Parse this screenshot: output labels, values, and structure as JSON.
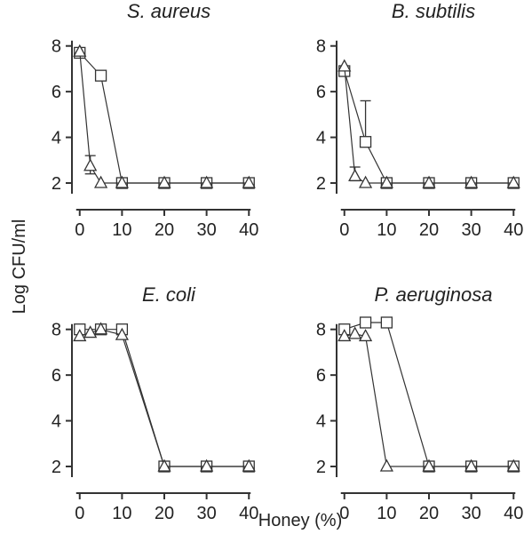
{
  "figure": {
    "ylabel": "Log CFU/ml",
    "xlabel": "Honey (%)"
  },
  "chart_data": [
    {
      "type": "line",
      "title": "S. aureus",
      "x_ticks": [
        0,
        10,
        20,
        30,
        40
      ],
      "y_ticks": [
        2,
        4,
        6,
        8
      ],
      "xlim": [
        -1,
        41
      ],
      "ylim": [
        1.3,
        9
      ],
      "series": [
        {
          "marker": "square",
          "x": [
            0,
            5,
            10,
            20,
            30,
            40
          ],
          "y": [
            7.7,
            6.7,
            2.0,
            2.0,
            2.0,
            2.0
          ]
        },
        {
          "marker": "triangle",
          "x": [
            0,
            2.5,
            5,
            10,
            20,
            30,
            40
          ],
          "y": [
            7.75,
            2.75,
            2.0,
            2.0,
            2.0,
            2.0,
            2.0
          ],
          "error_upper": [
            0,
            3.2,
            0,
            0,
            0,
            0,
            0
          ],
          "error_lower": [
            0,
            2.4,
            0,
            0,
            0,
            0,
            0
          ]
        }
      ]
    },
    {
      "type": "line",
      "title": "B. subtilis",
      "x_ticks": [
        0,
        10,
        20,
        30,
        40
      ],
      "y_ticks": [
        2,
        4,
        6,
        8
      ],
      "xlim": [
        -1,
        41
      ],
      "ylim": [
        1.3,
        9
      ],
      "series": [
        {
          "marker": "square",
          "x": [
            0,
            5,
            10,
            20,
            30,
            40
          ],
          "y": [
            6.9,
            3.8,
            2.0,
            2.0,
            2.0,
            2.0
          ],
          "error_upper": [
            0,
            5.6,
            0,
            0,
            0,
            0
          ],
          "error_lower": [
            0,
            3.8,
            0,
            0,
            0,
            0
          ]
        },
        {
          "marker": "triangle",
          "x": [
            0,
            2.5,
            5,
            10,
            20,
            30,
            40
          ],
          "y": [
            7.1,
            2.3,
            2.0,
            2.0,
            2.0,
            2.0,
            2.0
          ],
          "error_upper": [
            0,
            2.7,
            0,
            0,
            0,
            0,
            0
          ],
          "error_lower": [
            0,
            2.1,
            0,
            0,
            0,
            0,
            0
          ]
        }
      ]
    },
    {
      "type": "line",
      "title": "E. coli",
      "x_ticks": [
        0,
        10,
        20,
        30,
        40
      ],
      "y_ticks": [
        2,
        4,
        6,
        8
      ],
      "xlim": [
        -1,
        41
      ],
      "ylim": [
        1.3,
        9
      ],
      "series": [
        {
          "marker": "square",
          "x": [
            0,
            5,
            10,
            20,
            30,
            40
          ],
          "y": [
            8.0,
            8.0,
            8.0,
            2.0,
            2.0,
            2.0
          ]
        },
        {
          "marker": "triangle",
          "x": [
            0,
            2.5,
            5,
            10,
            20,
            30,
            40
          ],
          "y": [
            7.7,
            7.85,
            8.0,
            7.75,
            2.0,
            2.0,
            2.0
          ]
        }
      ]
    },
    {
      "type": "line",
      "title": "P. aeruginosa",
      "x_ticks": [
        0,
        10,
        20,
        30,
        40
      ],
      "y_ticks": [
        2,
        4,
        6,
        8
      ],
      "xlim": [
        -1,
        41
      ],
      "ylim": [
        1.3,
        9
      ],
      "series": [
        {
          "marker": "square",
          "x": [
            0,
            5,
            10,
            20,
            30,
            40
          ],
          "y": [
            8.0,
            8.3,
            8.3,
            2.0,
            2.0,
            2.0
          ]
        },
        {
          "marker": "triangle",
          "x": [
            0,
            2.5,
            5,
            10,
            20,
            30,
            40
          ],
          "y": [
            7.7,
            7.8,
            7.7,
            2.0,
            2.0,
            2.0,
            2.0
          ]
        }
      ]
    }
  ]
}
